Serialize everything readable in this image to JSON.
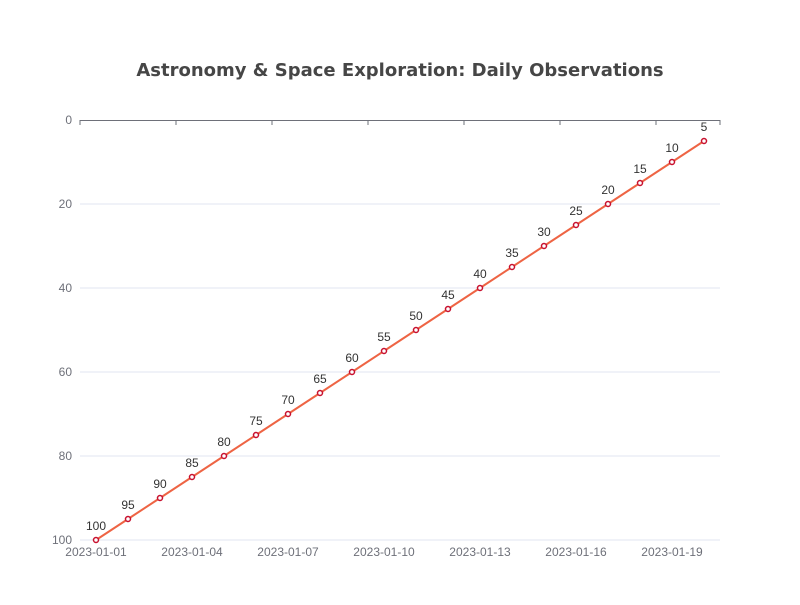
{
  "chart_data": {
    "type": "line",
    "title": "Astronomy & Space Exploration: Daily Observations",
    "xlabel": "",
    "ylabel": "",
    "x": [
      "2023-01-01",
      "2023-01-02",
      "2023-01-03",
      "2023-01-04",
      "2023-01-05",
      "2023-01-06",
      "2023-01-07",
      "2023-01-08",
      "2023-01-09",
      "2023-01-10",
      "2023-01-11",
      "2023-01-12",
      "2023-01-13",
      "2023-01-14",
      "2023-01-15",
      "2023-01-16",
      "2023-01-17",
      "2023-01-18",
      "2023-01-19",
      "2023-01-20"
    ],
    "x_tick_labels": [
      "2023-01-01",
      "2023-01-04",
      "2023-01-07",
      "2023-01-10",
      "2023-01-13",
      "2023-01-16",
      "2023-01-19"
    ],
    "series": [
      {
        "values": [
          100,
          95,
          90,
          85,
          80,
          75,
          70,
          65,
          60,
          55,
          50,
          45,
          40,
          35,
          30,
          25,
          20,
          15,
          10,
          5
        ]
      }
    ],
    "ylim": [
      0,
      100
    ],
    "y_inverted": true,
    "y_ticks": [
      0,
      20,
      40,
      60,
      80,
      100
    ],
    "grid": true,
    "data_labels": true,
    "line_color": "#ee6444",
    "marker_color": "#c8102e"
  }
}
